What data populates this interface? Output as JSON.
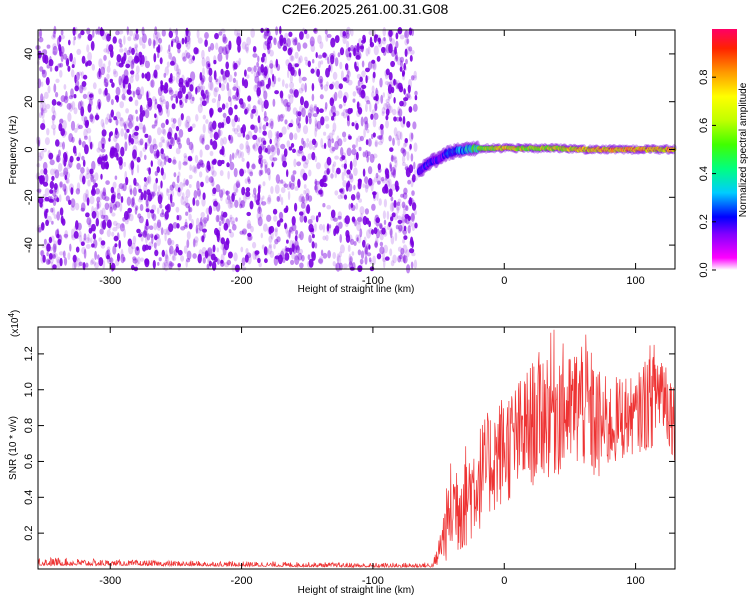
{
  "title": "C2E6.2025.261.00.31.G08",
  "colors": {
    "spectrogram_noise": "#7a00e0",
    "snr_line": "#ee3333",
    "axis": "#000000"
  },
  "chart_data": [
    {
      "type": "heatmap",
      "name": "spectrogram",
      "xlabel": "Height of straight line (km)",
      "ylabel": "Frequency (Hz)",
      "xlim": [
        -355,
        130
      ],
      "ylim": [
        -50,
        50
      ],
      "xticks": [
        -300,
        -200,
        -100,
        0,
        100
      ],
      "yticks": [
        -40,
        -20,
        0,
        20,
        40
      ],
      "xtick_labels": [
        "-300",
        "-200",
        "-100",
        "0",
        "100"
      ],
      "ytick_labels": [
        "-40",
        "-20",
        "0",
        "20",
        "40"
      ],
      "noise_region_x": [
        -355,
        -67
      ],
      "signal": [
        {
          "x": -65,
          "f": -9,
          "amp": 0.35
        },
        {
          "x": -60,
          "f": -7,
          "amp": 0.45
        },
        {
          "x": -55,
          "f": -5,
          "amp": 0.4
        },
        {
          "x": -50,
          "f": -4,
          "amp": 0.35
        },
        {
          "x": -45,
          "f": -2,
          "amp": 0.45
        },
        {
          "x": -40,
          "f": -1,
          "amp": 0.5
        },
        {
          "x": -30,
          "f": 0,
          "amp": 0.6
        },
        {
          "x": -20,
          "f": 0.5,
          "amp": 0.75
        },
        {
          "x": -10,
          "f": 0.5,
          "amp": 0.85
        },
        {
          "x": 0,
          "f": 0.5,
          "amp": 0.95
        },
        {
          "x": 20,
          "f": 0.5,
          "amp": 0.85
        },
        {
          "x": 40,
          "f": 0.5,
          "amp": 0.9
        },
        {
          "x": 60,
          "f": 0,
          "amp": 0.95
        },
        {
          "x": 80,
          "f": 0,
          "amp": 1.0
        },
        {
          "x": 100,
          "f": 0,
          "amp": 1.0
        },
        {
          "x": 130,
          "f": 0,
          "amp": 0.95
        }
      ],
      "colorbar": {
        "label": "Normalized spectral amplitude",
        "range": [
          0,
          1
        ],
        "ticks": [
          0.0,
          0.2,
          0.4,
          0.6,
          0.8
        ],
        "tick_labels": [
          "0.0",
          "0.2",
          "0.4",
          "0.6",
          "0.8"
        ]
      }
    },
    {
      "type": "line",
      "name": "snr",
      "xlabel": "Height of straight line (km)",
      "ylabel": "SNR (10 * v/v)",
      "yscale_label": "(x10",
      "yscale_exp": "4",
      "yscale_close": ")",
      "xlim": [
        -355,
        130
      ],
      "ylim": [
        0,
        13500
      ],
      "xticks": [
        -300,
        -200,
        -100,
        0,
        100
      ],
      "yticks": [
        2000,
        4000,
        6000,
        8000,
        10000,
        12000
      ],
      "xtick_labels": [
        "-300",
        "-200",
        "-100",
        "0",
        "100"
      ],
      "ytick_labels": [
        "0.2",
        "0.4",
        "0.6",
        "0.8",
        "1.0",
        "1.2"
      ],
      "series": [
        {
          "envelope": [
            {
              "x": -355,
              "low": 200,
              "high": 900
            },
            {
              "x": -300,
              "low": 200,
              "high": 650
            },
            {
              "x": -200,
              "low": 150,
              "high": 550
            },
            {
              "x": -100,
              "low": 100,
              "high": 450
            },
            {
              "x": -55,
              "low": 100,
              "high": 500
            },
            {
              "x": -48,
              "low": 300,
              "high": 2500
            },
            {
              "x": -40,
              "low": 500,
              "high": 6500
            },
            {
              "x": -30,
              "low": 1000,
              "high": 7000
            },
            {
              "x": -20,
              "low": 2000,
              "high": 8000
            },
            {
              "x": -10,
              "low": 3000,
              "high": 9000
            },
            {
              "x": 0,
              "low": 3500,
              "high": 10000
            },
            {
              "x": 10,
              "low": 4000,
              "high": 10500
            },
            {
              "x": 20,
              "low": 4500,
              "high": 11500
            },
            {
              "x": 30,
              "low": 5000,
              "high": 12500
            },
            {
              "x": 38,
              "low": 5000,
              "high": 13500
            },
            {
              "x": 50,
              "low": 5500,
              "high": 12000
            },
            {
              "x": 60,
              "low": 5500,
              "high": 13500
            },
            {
              "x": 70,
              "low": 4500,
              "high": 11500
            },
            {
              "x": 80,
              "low": 5500,
              "high": 10500
            },
            {
              "x": 90,
              "low": 6000,
              "high": 11000
            },
            {
              "x": 100,
              "low": 6500,
              "high": 10500
            },
            {
              "x": 110,
              "low": 6500,
              "high": 12500
            },
            {
              "x": 120,
              "low": 7500,
              "high": 13000
            },
            {
              "x": 130,
              "low": 6000,
              "high": 10500
            }
          ]
        }
      ]
    }
  ]
}
